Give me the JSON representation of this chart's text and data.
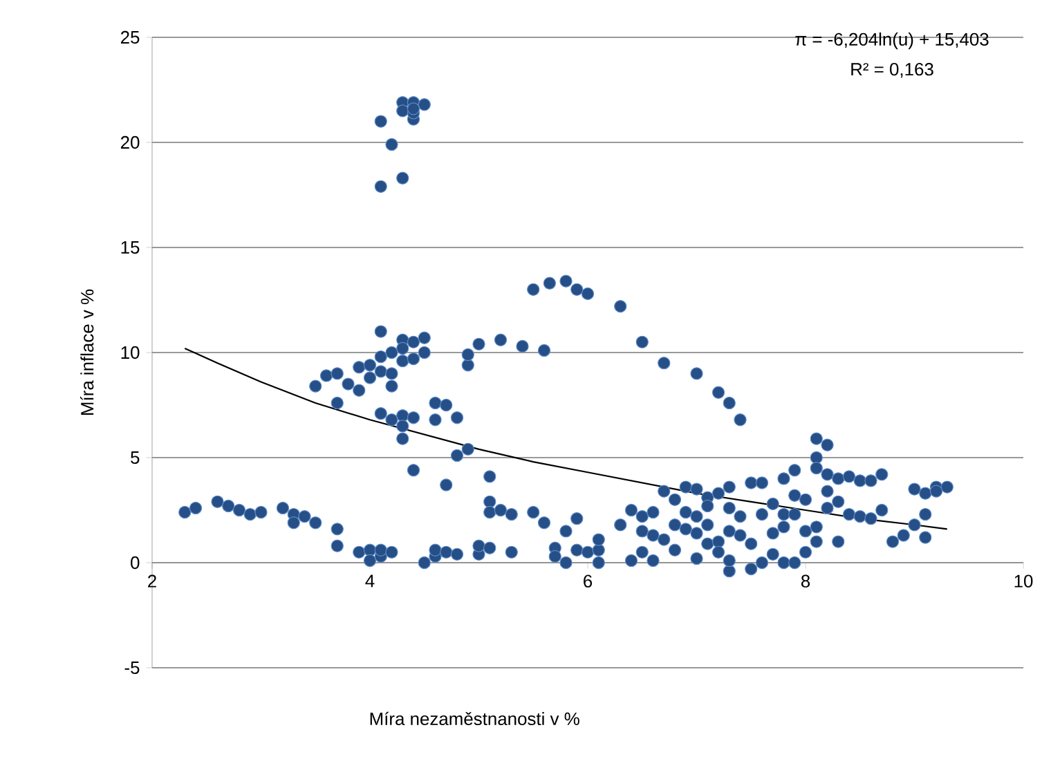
{
  "chart_data": {
    "type": "scatter",
    "xlabel": "Míra nezaměstnanosti v %",
    "ylabel": "Míra inflace v %",
    "annotations": [
      "π = -6,204ln(u) + 15,403",
      "R² = 0,163"
    ],
    "xlim": [
      2,
      10
    ],
    "ylim": [
      -5,
      25
    ],
    "xticks": [
      2,
      4,
      6,
      8,
      10
    ],
    "yticks": [
      -5,
      0,
      5,
      10,
      15,
      20,
      25
    ],
    "grid": "y",
    "marker": "circle",
    "series": [
      {
        "color": "#254f86",
        "x": [
          4.1,
          4.1,
          4.2,
          4.3,
          4.3,
          4.3,
          4.4,
          4.4,
          4.4,
          4.5,
          4.4,
          5.5,
          5.65,
          5.8,
          5.9,
          6.0,
          6.3,
          6.5,
          6.7,
          7.0,
          7.2,
          7.3,
          7.4,
          4.9,
          4.9,
          5.0,
          5.2,
          5.4,
          5.6,
          3.5,
          3.6,
          3.7,
          3.7,
          3.8,
          3.9,
          3.9,
          4.0,
          4.0,
          4.1,
          4.1,
          4.1,
          4.1,
          4.2,
          4.2,
          4.2,
          4.3,
          4.3,
          4.3,
          4.3,
          4.2,
          4.3,
          4.3,
          4.4,
          4.4,
          4.4,
          4.5,
          4.5,
          4.4,
          4.6,
          4.7,
          4.6,
          4.8,
          4.7,
          4.8,
          4.9,
          2.3,
          2.4,
          2.6,
          2.7,
          2.8,
          2.9,
          3.0,
          3.2,
          3.3,
          3.3,
          3.4,
          3.5,
          3.7,
          3.7,
          3.9,
          4.0,
          4.0,
          4.1,
          4.1,
          4.2,
          4.5,
          4.6,
          4.6,
          4.7,
          4.8,
          5.0,
          5.0,
          5.1,
          5.1,
          5.1,
          5.1,
          5.2,
          5.3,
          5.3,
          5.5,
          5.6,
          5.7,
          5.7,
          5.8,
          5.8,
          5.9,
          5.9,
          6.0,
          6.1,
          6.1,
          6.1,
          6.3,
          6.4,
          6.4,
          6.5,
          6.5,
          6.5,
          6.6,
          6.6,
          6.6,
          6.7,
          6.7,
          6.8,
          6.8,
          6.8,
          6.9,
          6.9,
          6.9,
          7.0,
          7.0,
          7.0,
          7.0,
          7.1,
          7.1,
          7.1,
          7.1,
          7.2,
          7.2,
          7.2,
          7.3,
          7.3,
          7.3,
          7.3,
          7.3,
          7.4,
          7.4,
          7.5,
          7.5,
          7.5,
          7.6,
          7.6,
          7.6,
          7.7,
          7.7,
          7.7,
          7.8,
          7.8,
          7.8,
          7.8,
          7.9,
          7.9,
          7.9,
          7.9,
          8.0,
          8.0,
          8.0,
          8.1,
          8.1,
          8.1,
          8.1,
          8.1,
          8.2,
          8.2,
          8.2,
          8.2,
          8.3,
          8.3,
          8.3,
          8.4,
          8.4,
          8.5,
          8.5,
          8.6,
          8.6,
          8.7,
          8.7,
          8.8,
          8.9,
          9.0,
          9.0,
          9.1,
          9.1,
          9.1,
          9.2,
          9.3,
          9.2
        ],
        "values": [
          21.0,
          17.9,
          19.9,
          18.3,
          21.9,
          21.5,
          21.1,
          21.9,
          21.4,
          21.8,
          21.6,
          13.0,
          13.3,
          13.4,
          13.0,
          12.8,
          12.2,
          10.5,
          9.5,
          9.0,
          8.1,
          7.6,
          6.8,
          9.4,
          9.9,
          10.4,
          10.6,
          10.3,
          10.1,
          8.4,
          8.9,
          9.0,
          7.6,
          8.5,
          9.3,
          8.2,
          9.4,
          8.8,
          11.0,
          9.8,
          9.1,
          7.1,
          10.0,
          9.0,
          8.4,
          10.6,
          10.2,
          9.6,
          7.0,
          6.8,
          6.5,
          5.9,
          10.5,
          9.7,
          6.9,
          10.7,
          10.0,
          4.4,
          7.6,
          7.5,
          6.8,
          6.9,
          3.7,
          5.1,
          5.4,
          2.4,
          2.6,
          2.9,
          2.7,
          2.5,
          2.3,
          2.4,
          2.6,
          2.3,
          1.9,
          2.2,
          1.9,
          1.6,
          0.8,
          0.5,
          0.6,
          0.1,
          0.3,
          0.6,
          0.5,
          0.0,
          0.3,
          0.6,
          0.5,
          0.4,
          0.4,
          0.8,
          0.7,
          4.1,
          2.9,
          2.4,
          2.5,
          2.3,
          0.5,
          2.4,
          1.9,
          0.7,
          0.3,
          0.0,
          1.5,
          0.6,
          2.1,
          0.5,
          0.0,
          0.6,
          1.1,
          1.8,
          2.5,
          0.1,
          1.5,
          0.5,
          2.2,
          1.3,
          0.1,
          2.4,
          3.4,
          1.1,
          1.8,
          3.0,
          0.6,
          3.6,
          1.6,
          2.4,
          3.5,
          2.2,
          0.2,
          1.4,
          3.1,
          1.8,
          2.7,
          0.9,
          3.3,
          1.0,
          0.5,
          3.6,
          2.6,
          1.5,
          -0.4,
          0.1,
          2.2,
          1.3,
          3.8,
          -0.3,
          0.9,
          3.8,
          2.3,
          0.0,
          2.8,
          1.4,
          0.4,
          4.0,
          2.3,
          1.7,
          0.0,
          4.4,
          3.2,
          2.3,
          0.0,
          1.5,
          0.5,
          3.0,
          5.9,
          5.0,
          4.5,
          1.7,
          1.0,
          5.6,
          4.2,
          3.4,
          2.6,
          4.0,
          2.9,
          1.0,
          4.1,
          2.3,
          3.9,
          2.2,
          3.9,
          2.1,
          4.2,
          2.5,
          1.0,
          1.3,
          3.5,
          1.8,
          3.3,
          1.2,
          2.3,
          3.6,
          3.6,
          3.4
        ]
      },
      {
        "type": "line",
        "color": "#000000",
        "marker": "none",
        "x": [
          2.3,
          2.6,
          3,
          3.5,
          4,
          4.5,
          5,
          5.5,
          6,
          6.5,
          7,
          7.5,
          8,
          8.5,
          9,
          9.3
        ],
        "values": [
          10.2,
          9.5,
          8.6,
          7.6,
          6.8,
          6.1,
          5.4,
          4.8,
          4.3,
          3.8,
          3.3,
          2.9,
          2.5,
          2.1,
          1.8,
          1.6
        ]
      }
    ]
  }
}
